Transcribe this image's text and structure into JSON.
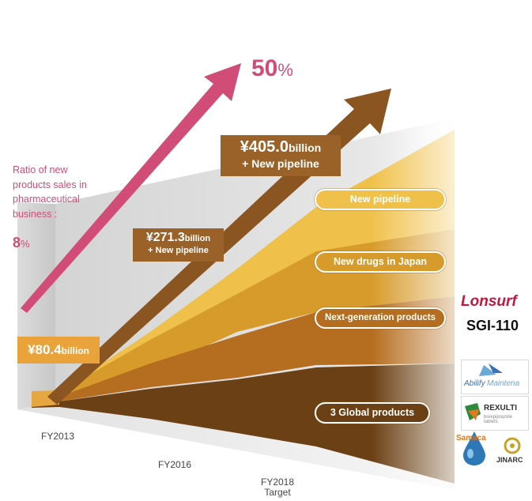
{
  "ratio": {
    "label_lines": [
      "Ratio of new",
      "products sales in",
      "pharmaceutical",
      "business :"
    ],
    "start_value": "8",
    "start_unit": "%",
    "end_value": "50",
    "end_unit": "%"
  },
  "sales": {
    "fy2013": {
      "amount": "¥80.4",
      "unit": "billion"
    },
    "fy2016": {
      "amount": "¥271.3",
      "unit": "billion",
      "plus": "+ New pipeline"
    },
    "fy2018": {
      "amount": "¥405.0",
      "unit": "billion",
      "plus": "+ New pipeline"
    }
  },
  "layers": [
    {
      "label": "New pipeline",
      "color": "#f0c14a"
    },
    {
      "label": "New drugs in Japan",
      "color": "#d79b2b"
    },
    {
      "label": "Next-generation products",
      "color": "#b56d1f"
    },
    {
      "label": "3 Global products",
      "color": "#6b4014"
    }
  ],
  "axis": {
    "x1": "FY2013",
    "x2": "FY2016",
    "x3": "FY2018",
    "x3_sub": "Target"
  },
  "products": {
    "next_gen": [
      "Lonsurf",
      "SGI-110"
    ],
    "global": [
      "Abilify Maintena",
      "REXULTI",
      "Samsca",
      "JINARC"
    ],
    "rexulti_sub": "brexpiprazole tablets"
  },
  "colors": {
    "ratio_arrow": "#d14d77",
    "sales_arrow": "#8a5520"
  }
}
